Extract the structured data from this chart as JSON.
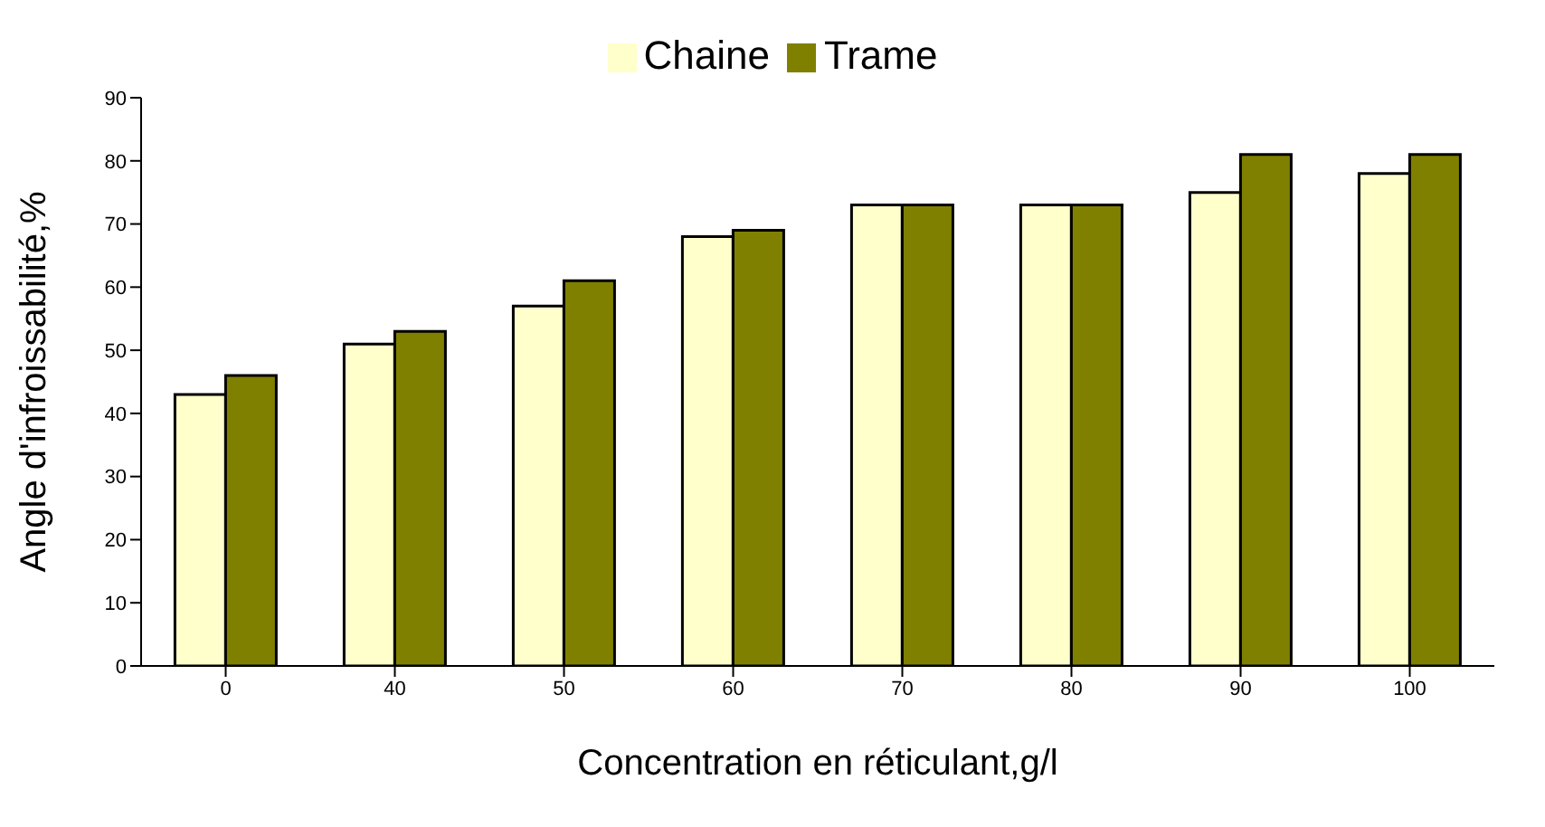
{
  "chart_data": {
    "type": "bar",
    "xlabel": "Concentration en réticulant,g/l",
    "ylabel": "Angle d'infroissabilité,%",
    "categories": [
      "0",
      "40",
      "50",
      "60",
      "70",
      "80",
      "90",
      "100"
    ],
    "series": [
      {
        "name": "Chaine",
        "color": "#ffffcc",
        "values": [
          43,
          51,
          57,
          68,
          73,
          73,
          75,
          78
        ]
      },
      {
        "name": "Trame",
        "color": "#808000",
        "values": [
          46,
          53,
          61,
          69,
          73,
          73,
          81,
          81
        ]
      }
    ],
    "ylim": [
      0,
      90
    ],
    "yticks": [
      0,
      10,
      20,
      30,
      40,
      50,
      60,
      70,
      80,
      90
    ],
    "grid": false,
    "legend": "top"
  }
}
